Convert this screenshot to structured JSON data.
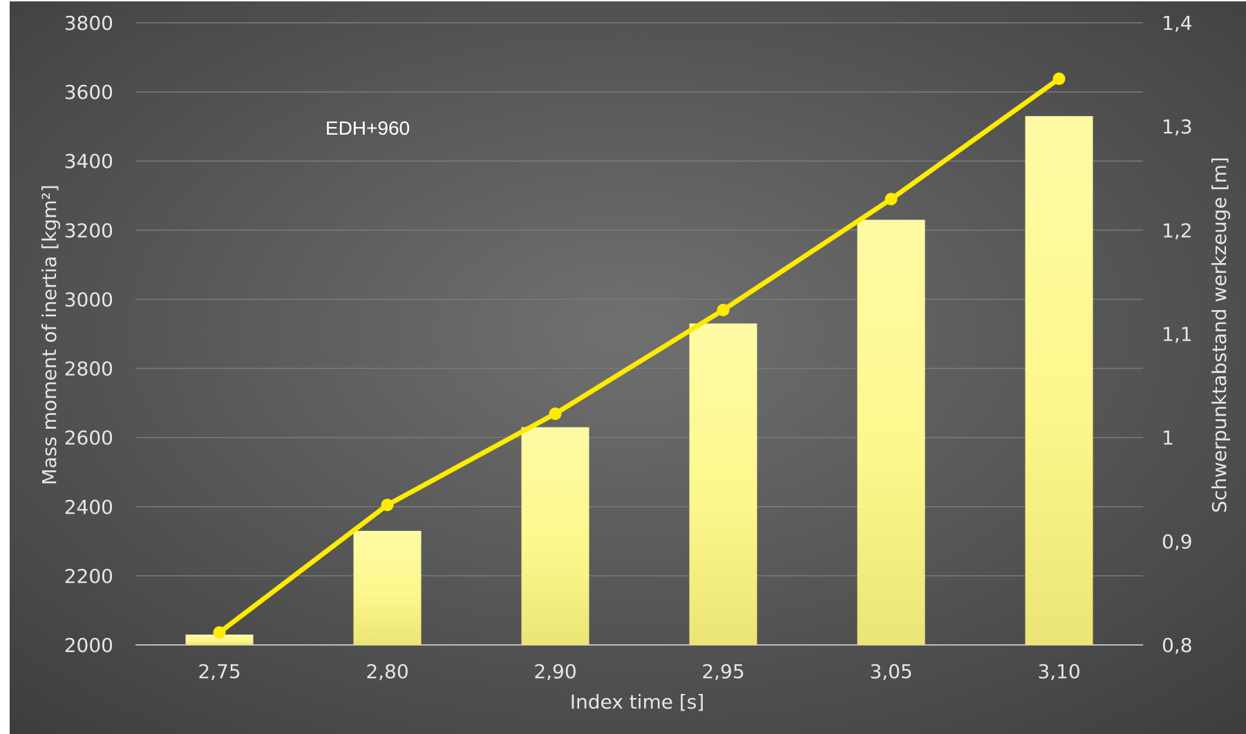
{
  "chart_data": {
    "type": "bar",
    "annotation": "EDH+960",
    "xlabel": "Index time [s]",
    "ylabel": "Mass moment of inertia [kgm²]",
    "y2label": "Schwerpunktabstand werkzeuge [m]",
    "categories": [
      "2,75",
      "2,80",
      "2,90",
      "2,95",
      "3,05",
      "3,10"
    ],
    "ylim": [
      2000,
      3800
    ],
    "y_ticks": [
      "2000",
      "2200",
      "2400",
      "2600",
      "2800",
      "3000",
      "3200",
      "3400",
      "3600",
      "3800"
    ],
    "y2lim": [
      0.8,
      1.4
    ],
    "y2_ticks": [
      "0,8",
      "0,9",
      "1",
      "1,1",
      "1,2",
      "1,3",
      "1,4"
    ],
    "grid": true,
    "series": [
      {
        "type": "bar",
        "axis": "left",
        "values": [
          2030,
          2330,
          2630,
          2930,
          3230,
          3530
        ]
      },
      {
        "type": "line",
        "axis": "right",
        "values": [
          0.812,
          0.935,
          1.023,
          1.123,
          1.23,
          1.346
        ]
      }
    ],
    "colors": {
      "background": "#5a5a5a",
      "bar": "#fdf88c",
      "line": "#ffeb00",
      "grid": "#7b7b7b",
      "text": "#e6e6e6"
    }
  }
}
